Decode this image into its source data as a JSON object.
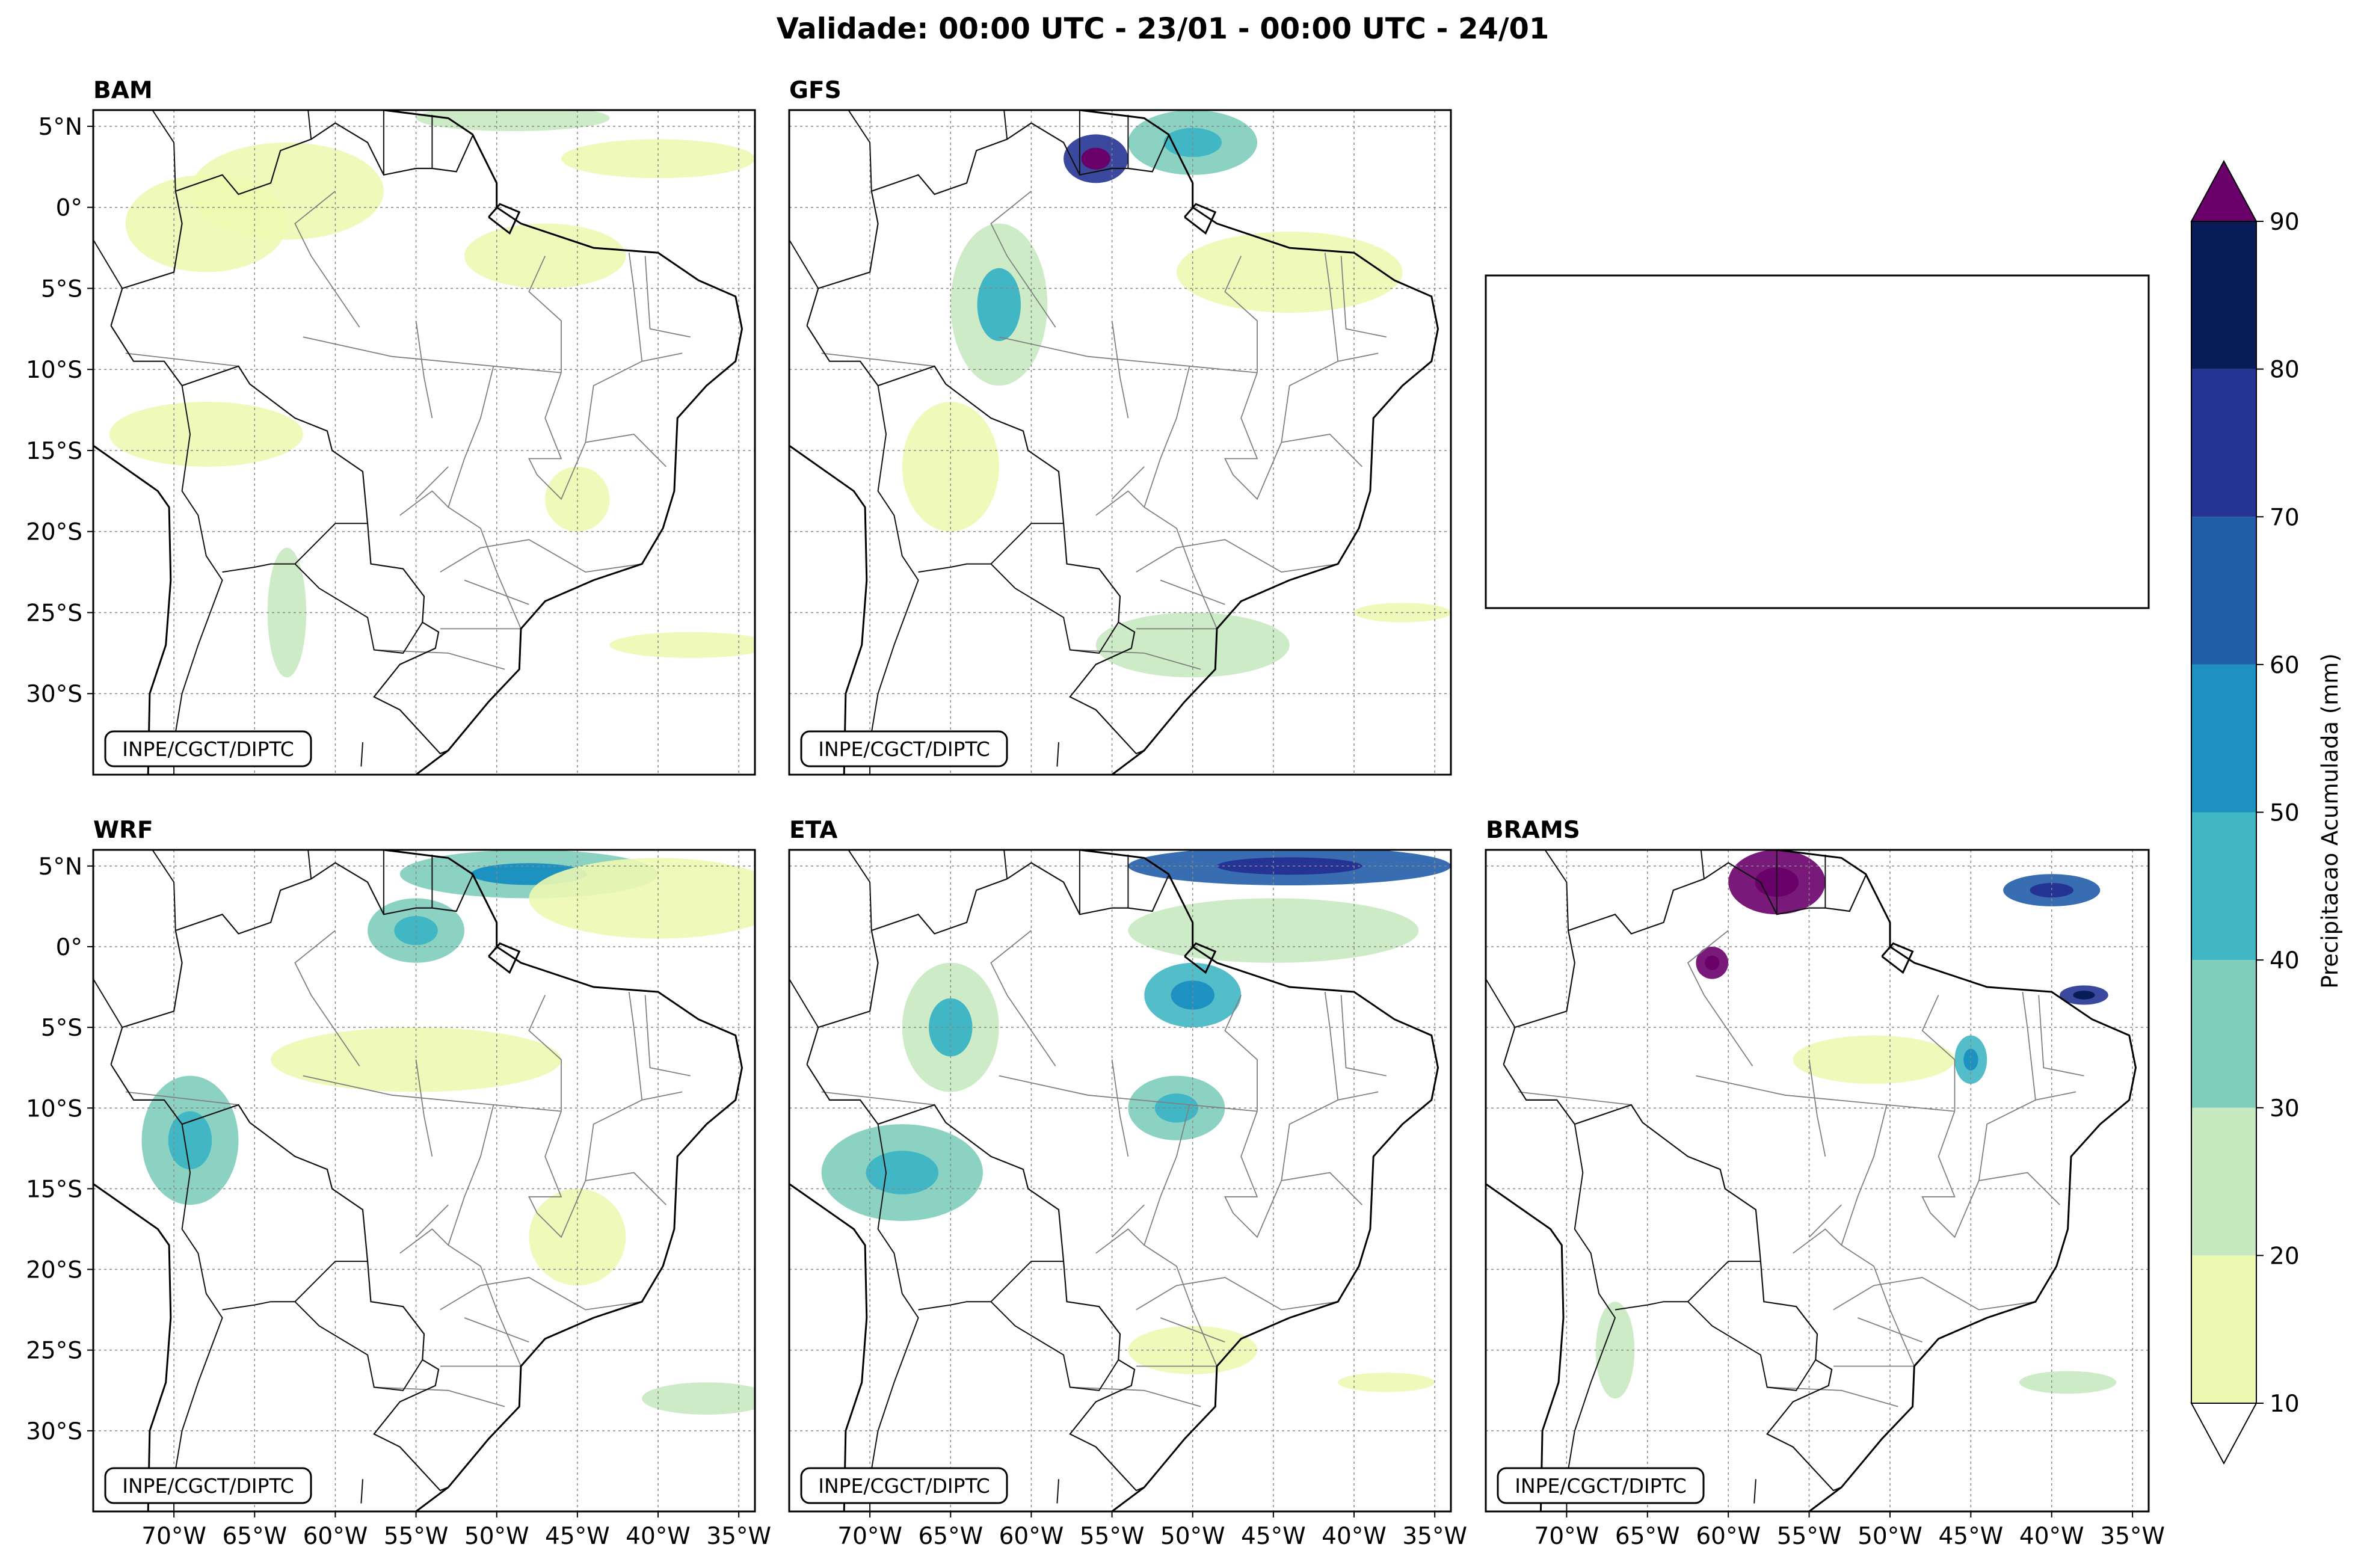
{
  "figure": {
    "title": "Validade: 00:00 UTC - 23/01 - 00:00 UTC - 24/01",
    "credit": "INPE/CGCT/DIPTC"
  },
  "panels": [
    {
      "name": "BAM"
    },
    {
      "name": "GFS"
    },
    {
      "name": ""
    },
    {
      "name": "WRF"
    },
    {
      "name": "ETA"
    },
    {
      "name": "BRAMS"
    }
  ],
  "axes": {
    "lat_labels": [
      "5°N",
      "0°",
      "5°S",
      "10°S",
      "15°S",
      "20°S",
      "25°S",
      "30°S"
    ],
    "lon_labels": [
      "70°W",
      "65°W",
      "60°W",
      "55°W",
      "50°W",
      "45°W",
      "40°W",
      "35°W"
    ],
    "lat_values": [
      5,
      0,
      -5,
      -10,
      -15,
      -20,
      -25,
      -30
    ],
    "lon_values": [
      -70,
      -65,
      -60,
      -55,
      -50,
      -45,
      -40,
      -35
    ],
    "extent": {
      "lon_min": -75,
      "lon_max": -34,
      "lat_min": -35,
      "lat_max": 6
    }
  },
  "colorbar": {
    "label": "Precipitacao Acumulada (mm)",
    "ticks": [
      "10",
      "20",
      "30",
      "40",
      "50",
      "60",
      "70",
      "80",
      "90"
    ],
    "levels": [
      10,
      20,
      30,
      40,
      50,
      60,
      70,
      80,
      90
    ],
    "colors": [
      "#edf8b1",
      "#c7e9c0",
      "#7fcdbb",
      "#41b6c4",
      "#1d91c0",
      "#225ea8",
      "#253494",
      "#081d58"
    ],
    "extend_over_color": "#6a006a",
    "extend_under_color": "#ffffff"
  },
  "precip_blobs": {
    "BAM": [
      {
        "lon": -63,
        "lat": 1,
        "rx": 6,
        "ry": 3,
        "mm": 12
      },
      {
        "lon": -68,
        "lat": -1,
        "rx": 5,
        "ry": 3,
        "mm": 12
      },
      {
        "lon": -49,
        "lat": 5.5,
        "rx": 6,
        "ry": 0.8,
        "mm": 22
      },
      {
        "lon": -40,
        "lat": 3,
        "rx": 6,
        "ry": 1.2,
        "mm": 12
      },
      {
        "lon": -68,
        "lat": -14,
        "rx": 6,
        "ry": 2,
        "mm": 14
      },
      {
        "lon": -63,
        "lat": -25,
        "rx": 1.2,
        "ry": 4,
        "mm": 22
      },
      {
        "lon": -38,
        "lat": -27,
        "rx": 5,
        "ry": 0.8,
        "mm": 12
      },
      {
        "lon": -45,
        "lat": -18,
        "rx": 2,
        "ry": 2,
        "mm": 12
      },
      {
        "lon": -47,
        "lat": -3,
        "rx": 5,
        "ry": 2,
        "mm": 12
      }
    ],
    "GFS": [
      {
        "lon": -56,
        "lat": 3,
        "rx": 2,
        "ry": 1.5,
        "mm": 75
      },
      {
        "lon": -50,
        "lat": 4,
        "rx": 4,
        "ry": 2,
        "mm": 30
      },
      {
        "lon": -62,
        "lat": -6,
        "rx": 3,
        "ry": 5,
        "mm": 25
      },
      {
        "lon": -44,
        "lat": -4,
        "rx": 7,
        "ry": 2.5,
        "mm": 12
      },
      {
        "lon": -65,
        "lat": -16,
        "rx": 3,
        "ry": 4,
        "mm": 14
      },
      {
        "lon": -50,
        "lat": -27,
        "rx": 6,
        "ry": 2,
        "mm": 20
      },
      {
        "lon": -37,
        "lat": -25,
        "rx": 3,
        "ry": 0.6,
        "mm": 12
      }
    ],
    "WRF": [
      {
        "lon": -48,
        "lat": 4.5,
        "rx": 8,
        "ry": 1.5,
        "mm": 35
      },
      {
        "lon": -40,
        "lat": 3,
        "rx": 8,
        "ry": 2.5,
        "mm": 12
      },
      {
        "lon": -55,
        "lat": 1,
        "rx": 3,
        "ry": 2,
        "mm": 30
      },
      {
        "lon": -69,
        "lat": -12,
        "rx": 3,
        "ry": 4,
        "mm": 30
      },
      {
        "lon": -55,
        "lat": -7,
        "rx": 9,
        "ry": 2,
        "mm": 12
      },
      {
        "lon": -45,
        "lat": -18,
        "rx": 3,
        "ry": 3,
        "mm": 12
      },
      {
        "lon": -37,
        "lat": -28,
        "rx": 4,
        "ry": 1,
        "mm": 20
      }
    ],
    "ETA": [
      {
        "lon": -44,
        "lat": 5,
        "rx": 10,
        "ry": 1.2,
        "mm": 60
      },
      {
        "lon": -45,
        "lat": 1,
        "rx": 9,
        "ry": 2,
        "mm": 20
      },
      {
        "lon": -50,
        "lat": -3,
        "rx": 3,
        "ry": 2,
        "mm": 40
      },
      {
        "lon": -65,
        "lat": -5,
        "rx": 3,
        "ry": 4,
        "mm": 25
      },
      {
        "lon": -68,
        "lat": -14,
        "rx": 5,
        "ry": 3,
        "mm": 30
      },
      {
        "lon": -51,
        "lat": -10,
        "rx": 3,
        "ry": 2,
        "mm": 30
      },
      {
        "lon": -50,
        "lat": -25,
        "rx": 4,
        "ry": 1.5,
        "mm": 14
      },
      {
        "lon": -38,
        "lat": -27,
        "rx": 3,
        "ry": 0.6,
        "mm": 12
      }
    ],
    "BRAMS": [
      {
        "lon": -57,
        "lat": 4,
        "rx": 3,
        "ry": 2,
        "mm": 95
      },
      {
        "lon": -61,
        "lat": -1,
        "rx": 1,
        "ry": 1,
        "mm": 95
      },
      {
        "lon": -40,
        "lat": 3.5,
        "rx": 3,
        "ry": 1,
        "mm": 60
      },
      {
        "lon": -38,
        "lat": -3,
        "rx": 1.5,
        "ry": 0.6,
        "mm": 70
      },
      {
        "lon": -45,
        "lat": -7,
        "rx": 1,
        "ry": 1.5,
        "mm": 40
      },
      {
        "lon": -51,
        "lat": -7,
        "rx": 5,
        "ry": 1.5,
        "mm": 12
      },
      {
        "lon": -67,
        "lat": -25,
        "rx": 1.2,
        "ry": 3,
        "mm": 20
      },
      {
        "lon": -39,
        "lat": -27,
        "rx": 3,
        "ry": 0.7,
        "mm": 20
      }
    ]
  }
}
